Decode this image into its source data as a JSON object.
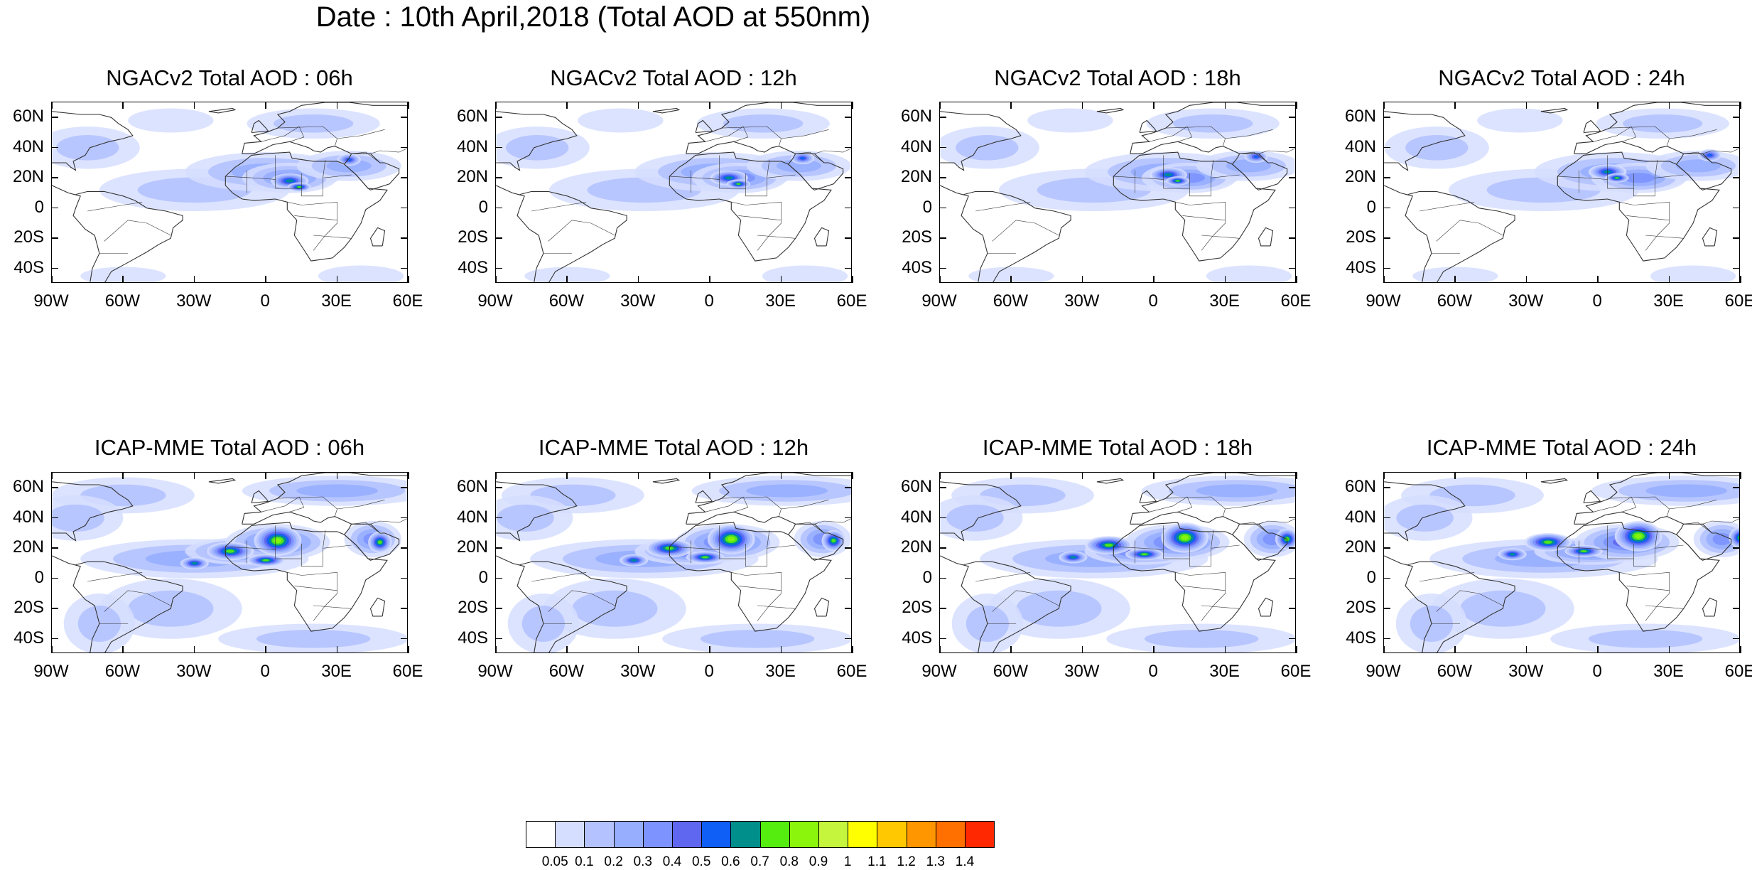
{
  "title": "Date : 10th April,2018 (Total AOD at 550nm)",
  "panels": [
    {
      "title": "NGACv2 Total AOD : 06h"
    },
    {
      "title": "NGACv2 Total AOD : 12h"
    },
    {
      "title": "NGACv2 Total AOD : 18h"
    },
    {
      "title": "NGACv2 Total AOD : 24h"
    },
    {
      "title": "ICAP-MME Total AOD : 06h"
    },
    {
      "title": "ICAP-MME Total AOD : 12h"
    },
    {
      "title": "ICAP-MME Total AOD : 18h"
    },
    {
      "title": "ICAP-MME Total AOD : 24h"
    }
  ],
  "lat_labels": [
    "60N",
    "40N",
    "20N",
    "0",
    "20S",
    "40S"
  ],
  "lon_labels": [
    "90W",
    "60W",
    "30W",
    "0",
    "30E",
    "60E"
  ],
  "colorbar": {
    "labels": [
      "0.05",
      "0.1",
      "0.2",
      "0.3",
      "0.4",
      "0.5",
      "0.6",
      "0.7",
      "0.8",
      "0.9",
      "1",
      "1.1",
      "1.2",
      "1.3",
      "1.4"
    ],
    "colors": [
      "#ffffff",
      "#d6deff",
      "#b4c2ff",
      "#97aeff",
      "#7d93ff",
      "#5f66f0",
      "#0f5ef5",
      "#008f8a",
      "#55ec10",
      "#8cf50c",
      "#c5f53c",
      "#ffff00",
      "#ffc800",
      "#ff9600",
      "#ff7000",
      "#ff2800"
    ]
  }
}
